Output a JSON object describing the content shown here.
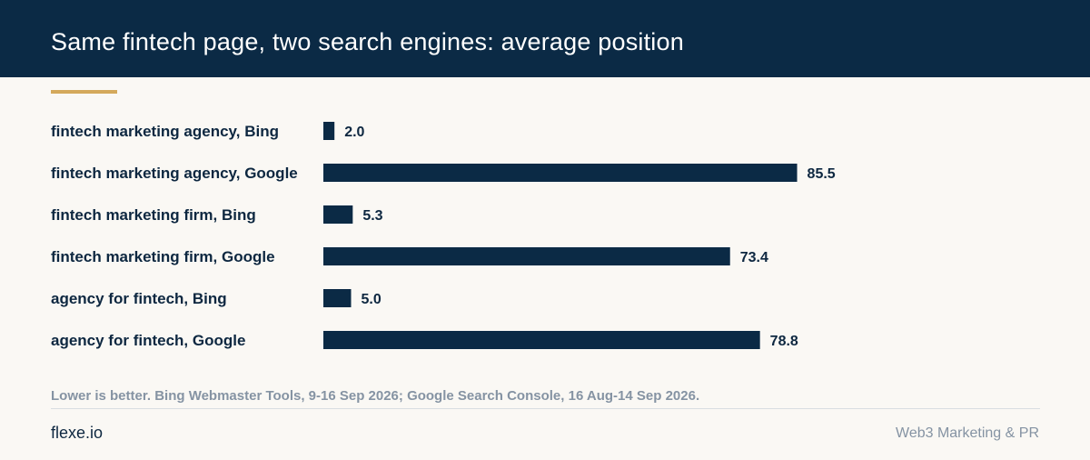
{
  "header": {
    "title": "Same fintech page, two search engines: average position"
  },
  "colors": {
    "header_bg": "#0b2a45",
    "bar": "#0b2a45",
    "accent": "#d4a95b",
    "background": "#faf8f4",
    "muted_text": "#8593a3"
  },
  "chart_data": {
    "type": "bar",
    "orientation": "horizontal",
    "title": "Same fintech page, two search engines: average position",
    "categories": [
      "fintech marketing agency, Bing",
      "fintech marketing agency, Google",
      "fintech marketing firm, Bing",
      "fintech marketing firm, Google",
      "agency for fintech, Bing",
      "agency for fintech, Google"
    ],
    "values": [
      2.0,
      85.5,
      5.3,
      73.4,
      5.0,
      78.8
    ],
    "value_labels": [
      "2.0",
      "85.5",
      "5.3",
      "73.4",
      "5.0",
      "78.8"
    ],
    "xlim": [
      0,
      100
    ],
    "grid": false,
    "legend": "none"
  },
  "footer": {
    "note": "Lower is better. Bing Webmaster Tools, 9-16 Sep 2026; Google Search Console, 16 Aug-14 Sep 2026.",
    "brand": "flexe.io",
    "tagline": "Web3 Marketing & PR"
  }
}
